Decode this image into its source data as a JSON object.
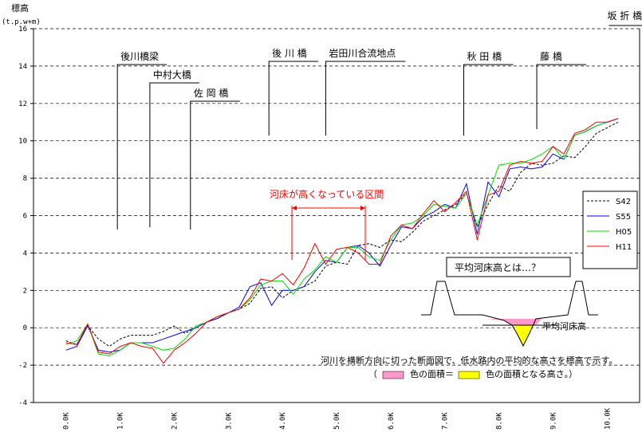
{
  "chart_data": {
    "type": "line",
    "ylabel": "標高",
    "yunit": "(t.p.w+m)",
    "ylim": [
      -4,
      16
    ],
    "yticks": [
      -4,
      -2,
      0,
      2,
      4,
      6,
      8,
      10,
      12,
      14,
      16
    ],
    "xlim": [
      -0.6,
      10.6
    ],
    "xticks": [
      "0.0K",
      "1.0K",
      "2.0K",
      "3.0K",
      "4.0K",
      "5.0K",
      "6.0K",
      "7.0K",
      "8.0K",
      "9.0K",
      "10.0K"
    ],
    "xtick_values": [
      0,
      1,
      2,
      3,
      4,
      5,
      6,
      7,
      8,
      9,
      10
    ],
    "grid": "horizontal-dashed",
    "legend_position": "right",
    "series": [
      {
        "name": "S42",
        "color": "#000000",
        "dash": "3,2",
        "x": [
          0,
          0.2,
          0.4,
          0.6,
          0.8,
          1.0,
          1.2,
          1.4,
          1.6,
          1.8,
          2.0,
          2.2,
          2.4,
          2.6,
          2.8,
          3.0,
          3.2,
          3.4,
          3.6,
          3.8,
          4.0,
          4.2,
          4.4,
          4.6,
          4.8,
          5.0,
          5.2,
          5.4,
          5.6,
          5.8,
          6.0,
          6.2,
          6.4,
          6.6,
          6.8,
          7.0,
          7.2,
          7.4,
          7.6,
          7.8,
          8.0,
          8.2,
          8.4,
          8.6,
          8.8,
          9.0,
          9.2,
          9.4,
          9.6,
          9.8,
          10.0,
          10.2
        ],
        "y": [
          -0.7,
          -0.9,
          0.1,
          -0.6,
          -1.0,
          -0.6,
          -0.4,
          -0.4,
          -0.4,
          -0.2,
          0.1,
          -0.3,
          0.0,
          0.3,
          0.5,
          0.8,
          1.0,
          1.3,
          2.1,
          2.2,
          1.6,
          2.0,
          2.2,
          2.5,
          3.3,
          3.5,
          3.4,
          4.4,
          4.5,
          4.3,
          4.7,
          4.6,
          5.1,
          5.7,
          6.0,
          6.3,
          6.6,
          7.2,
          5.4,
          6.6,
          7.6,
          7.3,
          8.3,
          8.8,
          8.7,
          8.8,
          9.2,
          9.1,
          9.7,
          10.4,
          10.7,
          11.0
        ]
      },
      {
        "name": "S55",
        "color": "#0000ff",
        "dash": "",
        "x": [
          0,
          0.2,
          0.4,
          0.6,
          0.8,
          1.0,
          1.2,
          1.4,
          1.6,
          1.8,
          2.0,
          2.2,
          2.4,
          2.6,
          2.8,
          3.0,
          3.2,
          3.4,
          3.6,
          3.8,
          4.0,
          4.2,
          4.4,
          4.6,
          4.8,
          5.0,
          5.2,
          5.4,
          5.6,
          5.8,
          6.0,
          6.2,
          6.4,
          6.6,
          6.8,
          7.0,
          7.2,
          7.4,
          7.6,
          7.8,
          8.0,
          8.2,
          8.4,
          8.6,
          8.8,
          9.0,
          9.2,
          9.4,
          9.6,
          9.8,
          10.0,
          10.2
        ],
        "y": [
          -1.2,
          -1.0,
          0.1,
          -1.2,
          -1.3,
          -1.2,
          -0.8,
          -0.8,
          -0.8,
          -0.6,
          -0.4,
          -0.2,
          0.0,
          0.3,
          0.5,
          0.8,
          1.1,
          2.2,
          2.4,
          1.2,
          2.0,
          2.0,
          2.2,
          3.0,
          3.6,
          3.5,
          4.3,
          4.4,
          4.0,
          3.3,
          4.4,
          5.4,
          5.3,
          5.9,
          6.2,
          6.6,
          6.4,
          7.7,
          5.0,
          7.8,
          7.0,
          8.5,
          8.6,
          8.5,
          8.6,
          9.3,
          9.0,
          10.3,
          10.5,
          10.8,
          11.0,
          11.2
        ]
      },
      {
        "name": "H05",
        "color": "#00dd00",
        "dash": "",
        "x": [
          0,
          0.2,
          0.4,
          0.6,
          0.8,
          1.0,
          1.2,
          1.4,
          1.6,
          1.8,
          2.0,
          2.2,
          2.4,
          2.6,
          2.8,
          3.0,
          3.2,
          3.4,
          3.6,
          3.8,
          4.0,
          4.2,
          4.4,
          4.6,
          4.8,
          5.0,
          5.2,
          5.4,
          5.6,
          5.8,
          6.0,
          6.2,
          6.4,
          6.6,
          6.8,
          7.0,
          7.2,
          7.4,
          7.6,
          7.8,
          8.0,
          8.2,
          8.4,
          8.6,
          8.8,
          9.0,
          9.2,
          9.4,
          9.6,
          9.8,
          10.0,
          10.2
        ],
        "y": [
          -0.9,
          -0.7,
          0.2,
          -1.4,
          -1.5,
          -1.2,
          -0.8,
          -0.8,
          -1.0,
          -1.2,
          -1.1,
          -0.6,
          0.1,
          0.3,
          0.6,
          0.8,
          1.0,
          1.5,
          2.3,
          2.5,
          2.5,
          1.8,
          2.6,
          3.1,
          3.8,
          3.5,
          4.3,
          4.3,
          3.8,
          3.6,
          4.7,
          5.5,
          5.6,
          6.0,
          6.6,
          6.5,
          6.4,
          7.2,
          5.5,
          7.1,
          8.7,
          8.8,
          8.8,
          9.0,
          9.3,
          9.7,
          9.0,
          10.3,
          10.5,
          10.8,
          11.0,
          11.2
        ]
      },
      {
        "name": "H11",
        "color": "#ff0000",
        "dash": "",
        "x": [
          0,
          0.2,
          0.4,
          0.6,
          0.8,
          1.0,
          1.2,
          1.4,
          1.6,
          1.8,
          2.0,
          2.2,
          2.4,
          2.6,
          2.8,
          3.0,
          3.2,
          3.4,
          3.6,
          3.8,
          4.0,
          4.2,
          4.4,
          4.6,
          4.8,
          5.0,
          5.2,
          5.4,
          5.6,
          5.8,
          6.0,
          6.2,
          6.4,
          6.6,
          6.8,
          7.0,
          7.2,
          7.4,
          7.6,
          7.8,
          8.0,
          8.2,
          8.4,
          8.6,
          8.8,
          9.0,
          9.2,
          9.4,
          9.6,
          9.8,
          10.0,
          10.2
        ],
        "y": [
          -0.8,
          -0.9,
          0.2,
          -1.3,
          -1.4,
          -1.0,
          -0.8,
          -1.0,
          -1.1,
          -1.9,
          -1.2,
          -0.8,
          -0.3,
          0.3,
          0.6,
          0.8,
          1.0,
          1.6,
          2.6,
          2.5,
          2.9,
          2.3,
          3.2,
          4.5,
          3.4,
          4.2,
          4.3,
          4.0,
          3.4,
          3.4,
          4.9,
          5.5,
          5.3,
          6.1,
          6.8,
          6.2,
          6.7,
          7.3,
          4.7,
          7.1,
          7.3,
          8.7,
          8.9,
          8.8,
          8.9,
          9.7,
          9.3,
          10.4,
          10.6,
          11.0,
          11.0,
          11.2
        ]
      }
    ]
  },
  "annotations": {
    "bridges": [
      {
        "label": "後川橋梁",
        "x": 0.95
      },
      {
        "label": "中村大橋",
        "x": 1.55
      },
      {
        "label": "佐 岡 橋",
        "x": 2.3
      },
      {
        "label": "後 川 橋",
        "x": 3.75
      },
      {
        "label": "岩田川合流地点",
        "x": 4.8
      },
      {
        "label": "秋 田 橋",
        "x": 7.35
      },
      {
        "label": "藤 橋",
        "x": 8.7
      },
      {
        "label": "坂 折 橋",
        "x": 10.15
      }
    ],
    "high_bed_label": "河床が高くなっている区間",
    "inset_title": "平均河床高とは…？",
    "inset_line_label": "平均河床高",
    "caption_line1": "河川を横断方向に切った断面図で、低水路内の平均的な高さを標高で示す。",
    "caption_line2_open": "（",
    "caption_line2_mid": "色の面積＝",
    "caption_line2_end": "色の面積となる高さ。）",
    "pink": "#ff99cc",
    "yellow": "#ffff00"
  }
}
